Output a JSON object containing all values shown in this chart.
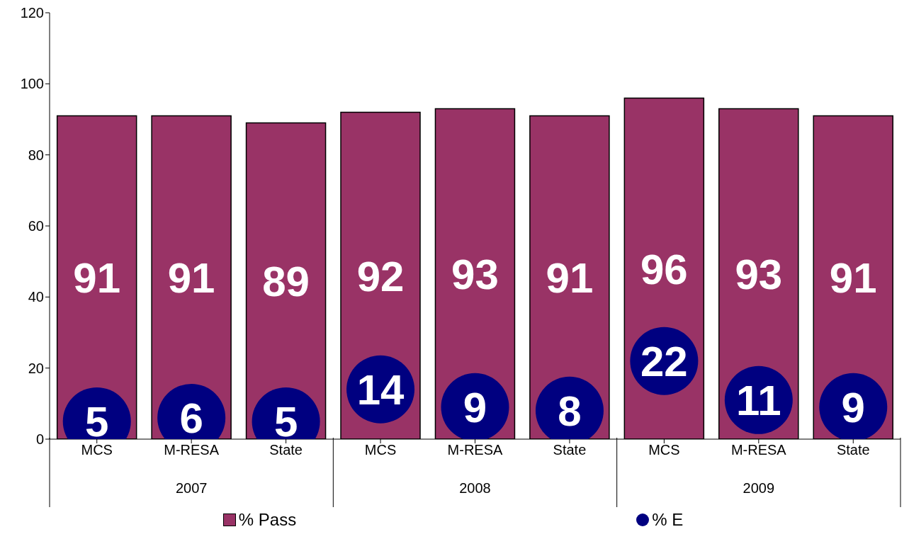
{
  "chart_data": {
    "type": "bar",
    "categories": [
      "MCS",
      "M-RESA",
      "State",
      "MCS",
      "M-RESA",
      "State",
      "MCS",
      "M-RESA",
      "State"
    ],
    "annotations": [
      "2007",
      "2008",
      "2009"
    ],
    "series": [
      {
        "name": "% Pass",
        "color": "#993366",
        "values": [
          91,
          91,
          89,
          92,
          93,
          91,
          96,
          93,
          91
        ]
      },
      {
        "name": "% E",
        "type": "scatter",
        "color": "#000080",
        "values": [
          5,
          6,
          5,
          14,
          9,
          8,
          22,
          11,
          9
        ]
      }
    ],
    "ylim": [
      0,
      120
    ],
    "yticks": [
      0,
      20,
      40,
      60,
      80,
      100,
      120
    ],
    "data_labels": true,
    "legend": "bottom",
    "grid": false,
    "marker": "circle"
  }
}
